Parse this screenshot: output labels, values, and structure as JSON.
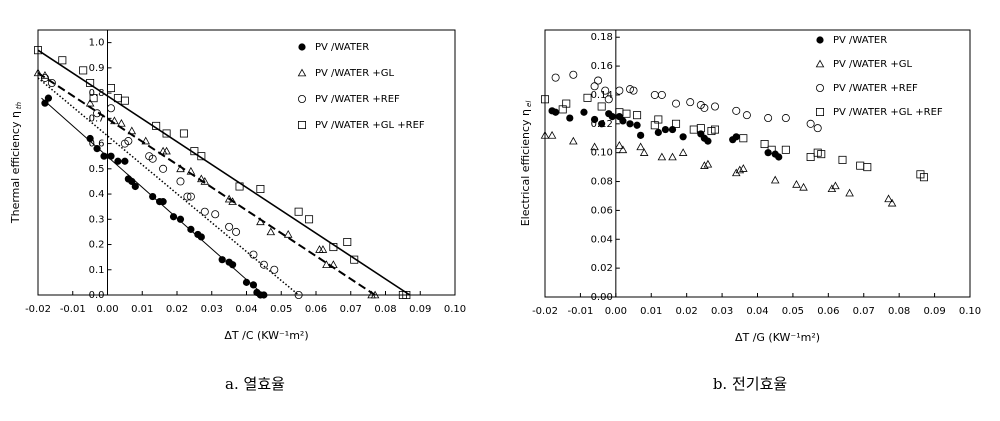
{
  "chart_data": [
    {
      "type": "scatter",
      "ylabel": "Thermal efficiency η",
      "ylabel_sub": "th",
      "xlabel": "ΔT /C  (KW⁻¹m²)",
      "caption": "a. 열효율",
      "xlim": [
        -0.02,
        0.1
      ],
      "ylim": [
        0,
        1.05
      ],
      "xticks": [
        -0.02,
        -0.01,
        {
          "value": 0,
          "label": "0.00"
        },
        0.01,
        0.02,
        0.03,
        0.04,
        0.05,
        0.06,
        0.07,
        0.08,
        0.09,
        {
          "value": 0.1,
          "label": "0.10"
        }
      ],
      "yticks": [
        {
          "value": 0,
          "label": "0.0"
        },
        0.1,
        0.2,
        0.3,
        0.4,
        0.5,
        0.6,
        0.7,
        0.8,
        0.9,
        {
          "value": 1,
          "label": "1.0"
        }
      ],
      "legend": "top-right",
      "series": [
        {
          "name": "PV /WATER",
          "marker": "filled-circle",
          "color": "#000000",
          "x": [
            -0.018,
            -0.017,
            -0.005,
            -0.003,
            -0.001,
            0.001,
            0.003,
            0.005,
            0.006,
            0.007,
            0.008,
            0.013,
            0.015,
            0.016,
            0.019,
            0.021,
            0.024,
            0.026,
            0.027,
            0.033,
            0.035,
            0.036,
            0.04,
            0.042,
            0.043,
            0.044,
            0.045
          ],
          "values": [
            0.76,
            0.78,
            0.62,
            0.58,
            0.55,
            0.55,
            0.53,
            0.53,
            0.46,
            0.45,
            0.43,
            0.39,
            0.37,
            0.37,
            0.31,
            0.3,
            0.26,
            0.24,
            0.23,
            0.14,
            0.13,
            0.12,
            0.05,
            0.04,
            0.01,
            0,
            0
          ]
        },
        {
          "name": "PV /WATER +GL",
          "marker": "triangle",
          "color": "#000000",
          "x": [
            -0.02,
            -0.018,
            -0.005,
            0.002,
            0.004,
            0.007,
            0.011,
            0.016,
            0.017,
            0.021,
            0.024,
            0.027,
            0.028,
            0.035,
            0.036,
            0.044,
            0.047,
            0.052,
            0.061,
            0.062,
            0.063,
            0.065,
            0.076,
            0.077
          ],
          "values": [
            0.88,
            0.87,
            0.76,
            0.69,
            0.68,
            0.65,
            0.61,
            0.57,
            0.57,
            0.5,
            0.49,
            0.46,
            0.45,
            0.38,
            0.37,
            0.29,
            0.25,
            0.24,
            0.18,
            0.18,
            0.12,
            0.12,
            0,
            0
          ]
        },
        {
          "name": "PV /WATER +REF",
          "marker": "circle",
          "color": "#000000",
          "x": [
            -0.018,
            -0.016,
            -0.003,
            0.001,
            0.005,
            0.006,
            0.012,
            0.013,
            0.016,
            0.021,
            0.023,
            0.024,
            0.028,
            0.031,
            0.035,
            0.037,
            0.042,
            0.045,
            0.048,
            0.055
          ],
          "values": [
            0.86,
            0.84,
            0.72,
            0.74,
            0.6,
            0.61,
            0.55,
            0.54,
            0.5,
            0.45,
            0.39,
            0.39,
            0.33,
            0.32,
            0.27,
            0.25,
            0.16,
            0.12,
            0.1,
            0
          ]
        },
        {
          "name": "PV /WATER +GL +REF",
          "marker": "square",
          "color": "#000000",
          "x": [
            -0.02,
            -0.013,
            -0.007,
            -0.005,
            -0.004,
            0.001,
            0.003,
            0.005,
            0.014,
            0.017,
            0.022,
            0.025,
            0.027,
            0.038,
            0.044,
            0.055,
            0.058,
            0.065,
            0.069,
            0.071,
            0.085,
            0.086
          ],
          "values": [
            0.97,
            0.93,
            0.89,
            0.84,
            0.78,
            0.82,
            0.78,
            0.77,
            0.67,
            0.64,
            0.64,
            0.57,
            0.55,
            0.43,
            0.42,
            0.33,
            0.3,
            0.19,
            0.21,
            0.14,
            0,
            0
          ]
        }
      ],
      "fit_lines": [
        {
          "style": "solid",
          "width": 1,
          "x": [
            -0.019,
            0.045
          ],
          "values": [
            0.78,
            0
          ]
        },
        {
          "style": "dashed",
          "width": 2,
          "x": [
            -0.02,
            0.077
          ],
          "values": [
            0.88,
            0
          ]
        },
        {
          "style": "dotted",
          "width": 1.5,
          "x": [
            -0.02,
            0.055
          ],
          "values": [
            0.86,
            0
          ]
        },
        {
          "style": "solid",
          "width": 1.6,
          "x": [
            -0.02,
            0.087
          ],
          "values": [
            0.97,
            0
          ]
        }
      ]
    },
    {
      "type": "scatter",
      "ylabel": "Electrical efficiency η",
      "ylabel_sub": "el",
      "xlabel": "ΔT /G  (KW⁻¹m²)",
      "caption": "b. 전기효율",
      "xlim": [
        -0.02,
        0.1
      ],
      "ylim": [
        0,
        0.185
      ],
      "xticks": [
        -0.02,
        -0.01,
        {
          "value": 0,
          "label": "0.00"
        },
        0.01,
        0.02,
        0.03,
        0.04,
        0.05,
        0.06,
        0.07,
        0.08,
        0.09,
        {
          "value": 0.1,
          "label": "0.10"
        }
      ],
      "yticks": [
        {
          "value": 0,
          "label": "0.00"
        },
        0.02,
        0.04,
        0.06,
        0.08,
        {
          "value": 0.1,
          "label": "0.10"
        },
        0.12,
        0.14,
        0.16,
        0.18
      ],
      "legend": "top-right",
      "series": [
        {
          "name": "PV /WATER",
          "marker": "filled-circle",
          "color": "#000000",
          "x": [
            -0.018,
            -0.017,
            -0.013,
            -0.009,
            -0.006,
            -0.004,
            -0.002,
            -0.001,
            0.001,
            0.002,
            0.004,
            0.006,
            0.007,
            0.012,
            0.014,
            0.016,
            0.019,
            0.024,
            0.025,
            0.026,
            0.033,
            0.034,
            0.043,
            0.045,
            0.046
          ],
          "values": [
            0.129,
            0.128,
            0.124,
            0.128,
            0.123,
            0.12,
            0.127,
            0.125,
            0.125,
            0.122,
            0.12,
            0.119,
            0.112,
            0.114,
            0.116,
            0.116,
            0.111,
            0.113,
            0.11,
            0.108,
            0.109,
            0.111,
            0.1,
            0.099,
            0.097
          ]
        },
        {
          "name": "PV /WATER +GL",
          "marker": "triangle",
          "color": "#000000",
          "x": [
            -0.02,
            -0.018,
            -0.012,
            -0.006,
            0.001,
            0.002,
            0.007,
            0.008,
            0.013,
            0.016,
            0.019,
            0.025,
            0.026,
            0.034,
            0.035,
            0.036,
            0.045,
            0.051,
            0.053,
            0.061,
            0.062,
            0.066,
            0.077,
            0.078
          ],
          "values": [
            0.112,
            0.112,
            0.108,
            0.104,
            0.105,
            0.102,
            0.104,
            0.1,
            0.097,
            0.097,
            0.1,
            0.091,
            0.092,
            0.086,
            0.088,
            0.089,
            0.081,
            0.078,
            0.076,
            0.075,
            0.077,
            0.072,
            0.068,
            0.065
          ]
        },
        {
          "name": "PV /WATER +REF",
          "marker": "circle",
          "color": "#000000",
          "x": [
            -0.017,
            -0.012,
            -0.006,
            -0.005,
            -0.003,
            -0.002,
            0.001,
            0.004,
            0.005,
            0.011,
            0.013,
            0.017,
            0.021,
            0.024,
            0.025,
            0.028,
            0.034,
            0.037,
            0.043,
            0.048,
            0.055,
            0.057
          ],
          "values": [
            0.152,
            0.154,
            0.146,
            0.15,
            0.143,
            0.137,
            0.143,
            0.144,
            0.143,
            0.14,
            0.14,
            0.134,
            0.135,
            0.133,
            0.131,
            0.132,
            0.129,
            0.126,
            0.124,
            0.124,
            0.12,
            0.117
          ]
        },
        {
          "name": "PV /WATER +GL +REF",
          "marker": "square",
          "color": "#000000",
          "x": [
            -0.02,
            -0.015,
            -0.014,
            -0.008,
            -0.004,
            0.001,
            0.003,
            0.006,
            0.011,
            0.012,
            0.017,
            0.022,
            0.024,
            0.027,
            0.028,
            0.036,
            0.042,
            0.044,
            0.048,
            0.055,
            0.057,
            0.058,
            0.064,
            0.069,
            0.071,
            0.086,
            0.087
          ],
          "values": [
            0.137,
            0.13,
            0.134,
            0.138,
            0.132,
            0.128,
            0.127,
            0.126,
            0.119,
            0.123,
            0.12,
            0.116,
            0.117,
            0.115,
            0.116,
            0.11,
            0.106,
            0.102,
            0.102,
            0.097,
            0.1,
            0.099,
            0.095,
            0.091,
            0.09,
            0.085,
            0.083
          ]
        }
      ]
    }
  ]
}
